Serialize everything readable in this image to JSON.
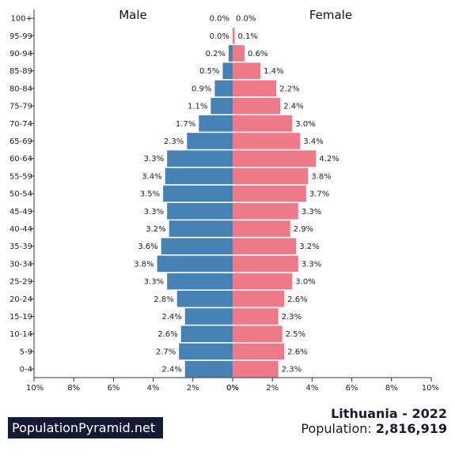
{
  "header": {
    "male_label": "Male",
    "female_label": "Female"
  },
  "brand": {
    "label": "PopulationPyramid.net"
  },
  "footer": {
    "country_year": "Lithuania - 2022",
    "population_label": "Population:",
    "population_value": "2,816,919"
  },
  "colors": {
    "male": "#4682b4",
    "female": "#ee7989"
  },
  "chart_data": {
    "type": "bar",
    "orientation": "horizontal",
    "layout": "population-pyramid",
    "categories": [
      "100+",
      "95-99",
      "90-94",
      "85-89",
      "80-84",
      "75-79",
      "70-74",
      "65-69",
      "60-64",
      "55-59",
      "50-54",
      "45-49",
      "40-44",
      "35-39",
      "30-34",
      "25-29",
      "20-24",
      "15-19",
      "10-14",
      "5-9",
      "0-4"
    ],
    "series": [
      {
        "name": "Male",
        "values": [
          0.0,
          0.0,
          0.2,
          0.5,
          0.9,
          1.1,
          1.7,
          2.3,
          3.3,
          3.4,
          3.5,
          3.3,
          3.2,
          3.6,
          3.8,
          3.3,
          2.8,
          2.4,
          2.6,
          2.7,
          2.4
        ],
        "labels": [
          "0.0%",
          "0.0%",
          "0.2%",
          "0.5%",
          "0.9%",
          "1.1%",
          "1.7%",
          "2.3%",
          "3.3%",
          "3.4%",
          "3.5%",
          "3.3%",
          "3.2%",
          "3.6%",
          "3.8%",
          "3.3%",
          "2.8%",
          "2.4%",
          "2.6%",
          "2.7%",
          "2.4%"
        ]
      },
      {
        "name": "Female",
        "values": [
          0.0,
          0.1,
          0.6,
          1.4,
          2.2,
          2.4,
          3.0,
          3.4,
          4.2,
          3.8,
          3.7,
          3.3,
          2.9,
          3.2,
          3.3,
          3.0,
          2.6,
          2.3,
          2.5,
          2.6,
          2.3
        ],
        "labels": [
          "0.0%",
          "0.1%",
          "0.6%",
          "1.4%",
          "2.2%",
          "2.4%",
          "3.0%",
          "3.4%",
          "4.2%",
          "3.8%",
          "3.7%",
          "3.3%",
          "2.9%",
          "3.2%",
          "3.3%",
          "3.0%",
          "2.6%",
          "2.3%",
          "2.5%",
          "2.6%",
          "2.3%"
        ]
      }
    ],
    "x_ticks": [
      "10%",
      "8%",
      "6%",
      "4%",
      "2%",
      "0%",
      "0%",
      "2%",
      "4%",
      "6%",
      "8%",
      "10%"
    ],
    "xlim": [
      0,
      10
    ]
  }
}
